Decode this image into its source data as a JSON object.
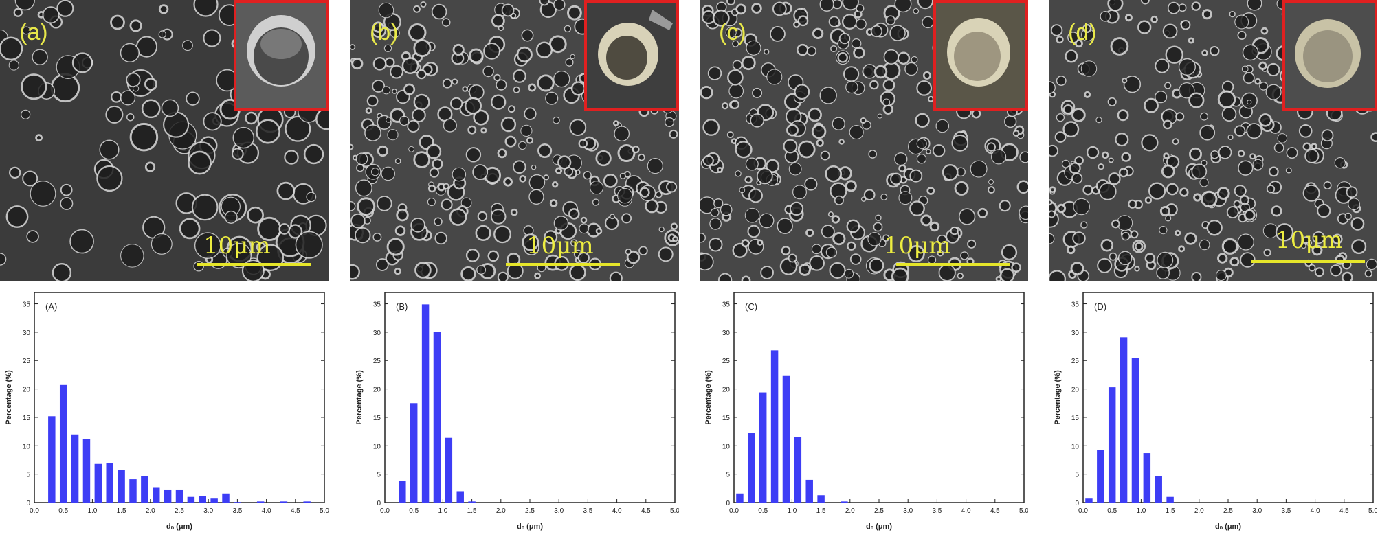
{
  "sem_panels": [
    {
      "label": "(a)",
      "scale": "10μm"
    },
    {
      "label": "(b)",
      "scale": "10μm"
    },
    {
      "label": "(c)",
      "scale": "10μm"
    },
    {
      "label": "(d)",
      "scale": "10μm"
    }
  ],
  "colors": {
    "bar": "#3d3df5",
    "label": "#e8e84a",
    "inset_border": "#e02020",
    "scale_bar": "#e6e62a"
  },
  "chart_data": [
    {
      "type": "bar",
      "panel_label": "(A)",
      "xlabel": "dₙ (μm)",
      "ylabel": "Percentage (%)",
      "xlim": [
        0,
        5
      ],
      "ylim": [
        0,
        37
      ],
      "xticks": [
        "0.0",
        "0.5",
        "1.0",
        "1.5",
        "2.0",
        "2.5",
        "3.0",
        "3.5",
        "4.0",
        "4.5",
        "5.0"
      ],
      "yticks": [
        "0",
        "5",
        "10",
        "15",
        "20",
        "25",
        "30",
        "35"
      ],
      "x": [
        0.3,
        0.5,
        0.7,
        0.9,
        1.1,
        1.3,
        1.5,
        1.7,
        1.9,
        2.1,
        2.3,
        2.5,
        2.7,
        2.9,
        3.1,
        3.3,
        3.5,
        3.7,
        3.9,
        4.1,
        4.3,
        4.5,
        4.7
      ],
      "values": [
        15.2,
        20.7,
        12.0,
        11.2,
        6.8,
        6.9,
        5.8,
        4.1,
        4.7,
        2.6,
        2.3,
        2.3,
        1.0,
        1.1,
        0.7,
        1.6,
        0.1,
        0.0,
        0.2,
        0.0,
        0.2,
        0.0,
        0.2
      ]
    },
    {
      "type": "bar",
      "panel_label": "(B)",
      "xlabel": "dₙ (μm)",
      "ylabel": "Percentage (%)",
      "xlim": [
        0,
        5
      ],
      "ylim": [
        0,
        37
      ],
      "xticks": [
        "0.0",
        "0.5",
        "1.0",
        "1.5",
        "2.0",
        "2.5",
        "3.0",
        "3.5",
        "4.0",
        "4.5",
        "5.0"
      ],
      "yticks": [
        "0",
        "5",
        "10",
        "15",
        "20",
        "25",
        "30",
        "35"
      ],
      "x": [
        0.3,
        0.5,
        0.7,
        0.9,
        1.1,
        1.3,
        1.5
      ],
      "values": [
        3.8,
        17.5,
        34.9,
        30.1,
        11.4,
        2.0,
        0.2
      ]
    },
    {
      "type": "bar",
      "panel_label": "(C)",
      "xlabel": "dₙ (μm)",
      "ylabel": "Percentage (%)",
      "xlim": [
        0,
        5
      ],
      "ylim": [
        0,
        37
      ],
      "xticks": [
        "0.0",
        "0.5",
        "1.0",
        "1.5",
        "2.0",
        "2.5",
        "3.0",
        "3.5",
        "4.0",
        "4.5",
        "5.0"
      ],
      "yticks": [
        "0",
        "5",
        "10",
        "15",
        "20",
        "25",
        "30",
        "35"
      ],
      "x": [
        0.1,
        0.3,
        0.5,
        0.7,
        0.9,
        1.1,
        1.3,
        1.5,
        1.9
      ],
      "values": [
        1.6,
        12.3,
        19.4,
        26.8,
        22.4,
        11.6,
        4.0,
        1.3,
        0.2
      ]
    },
    {
      "type": "bar",
      "panel_label": "(D)",
      "xlabel": "dₙ (μm)",
      "ylabel": "Percentage (%)",
      "xlim": [
        0,
        5
      ],
      "ylim": [
        0,
        37
      ],
      "xticks": [
        "0.0",
        "0.5",
        "1.0",
        "1.5",
        "2.0",
        "2.5",
        "3.0",
        "3.5",
        "4.0",
        "4.5",
        "5.0"
      ],
      "yticks": [
        "0",
        "5",
        "10",
        "15",
        "20",
        "25",
        "30",
        "35"
      ],
      "x": [
        0.1,
        0.3,
        0.5,
        0.7,
        0.9,
        1.1,
        1.3,
        1.5
      ],
      "values": [
        0.7,
        9.2,
        20.3,
        29.1,
        25.5,
        8.7,
        4.7,
        1.0
      ]
    }
  ]
}
